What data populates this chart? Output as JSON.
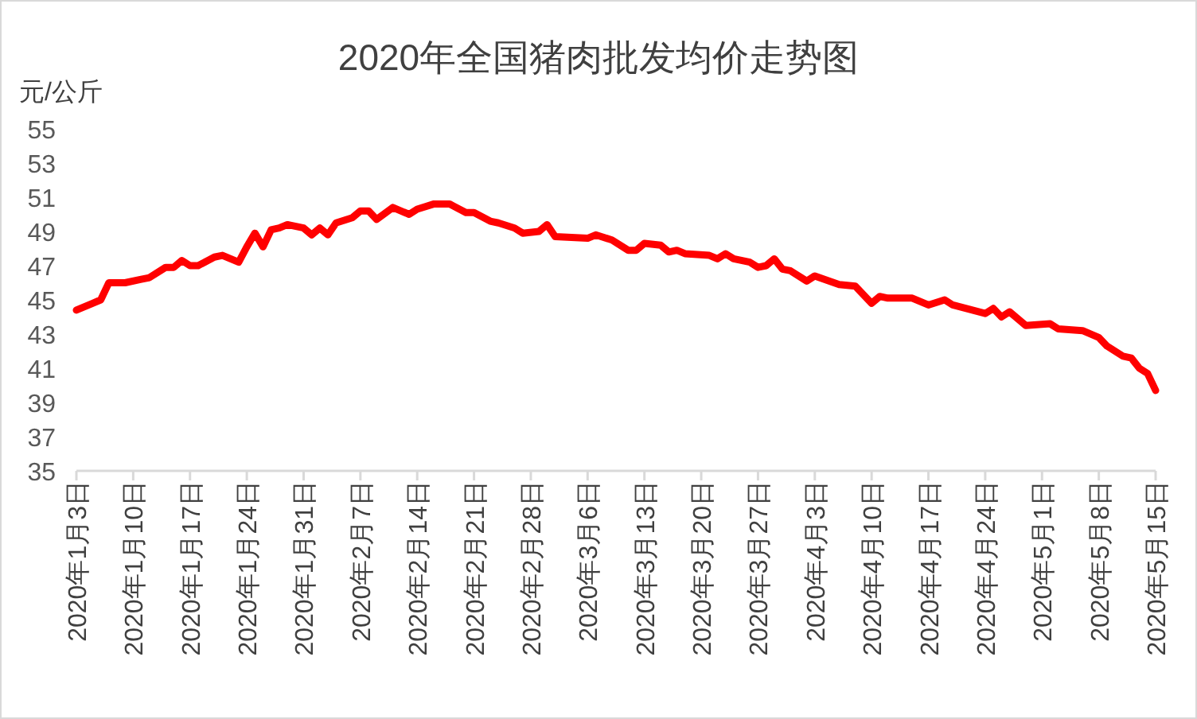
{
  "chart_data": {
    "type": "line",
    "title": "2020年全国猪肉批发均价走势图",
    "ylabel": "元/公斤",
    "x": [
      "2020-01-03",
      "2020-01-05",
      "2020-01-06",
      "2020-01-07",
      "2020-01-09",
      "2020-01-11",
      "2020-01-12",
      "2020-01-14",
      "2020-01-15",
      "2020-01-16",
      "2020-01-17",
      "2020-01-18",
      "2020-01-20",
      "2020-01-21",
      "2020-01-22",
      "2020-01-23",
      "2020-01-24",
      "2020-01-25",
      "2020-01-26",
      "2020-01-27",
      "2020-01-28",
      "2020-01-29",
      "2020-01-31",
      "2020-02-01",
      "2020-02-02",
      "2020-02-03",
      "2020-02-04",
      "2020-02-06",
      "2020-02-07",
      "2020-02-08",
      "2020-02-09",
      "2020-02-11",
      "2020-02-13",
      "2020-02-14",
      "2020-02-16",
      "2020-02-18",
      "2020-02-20",
      "2020-02-21",
      "2020-02-23",
      "2020-02-24",
      "2020-02-26",
      "2020-02-27",
      "2020-02-29",
      "2020-03-01",
      "2020-03-02",
      "2020-03-06",
      "2020-03-07",
      "2020-03-09",
      "2020-03-11",
      "2020-03-12",
      "2020-03-13",
      "2020-03-15",
      "2020-03-16",
      "2020-03-17",
      "2020-03-18",
      "2020-03-21",
      "2020-03-22",
      "2020-03-23",
      "2020-03-24",
      "2020-03-26",
      "2020-03-27",
      "2020-03-28",
      "2020-03-29",
      "2020-03-30",
      "2020-03-31",
      "2020-04-02",
      "2020-04-03",
      "2020-04-06",
      "2020-04-08",
      "2020-04-10",
      "2020-04-11",
      "2020-04-12",
      "2020-04-15",
      "2020-04-17",
      "2020-04-19",
      "2020-04-20",
      "2020-04-24",
      "2020-04-25",
      "2020-04-26",
      "2020-04-27",
      "2020-04-29",
      "2020-05-02",
      "2020-05-03",
      "2020-05-06",
      "2020-05-08",
      "2020-05-09",
      "2020-05-11",
      "2020-05-12",
      "2020-05-13",
      "2020-05-14",
      "2020-05-15"
    ],
    "series": [
      {
        "color": "#ff0000",
        "values": [
          44.4,
          44.8,
          45.0,
          46.0,
          46.0,
          46.2,
          46.3,
          46.9,
          46.9,
          47.3,
          47.0,
          47.0,
          47.5,
          47.6,
          47.4,
          47.2,
          48.1,
          48.9,
          48.1,
          49.1,
          49.2,
          49.4,
          49.2,
          48.8,
          49.2,
          48.8,
          49.5,
          49.8,
          50.2,
          50.2,
          49.7,
          50.4,
          50.0,
          50.3,
          50.6,
          50.6,
          50.1,
          50.1,
          49.6,
          49.5,
          49.2,
          48.9,
          49.0,
          49.4,
          48.7,
          48.6,
          48.8,
          48.5,
          47.9,
          47.9,
          48.3,
          48.2,
          47.8,
          47.9,
          47.7,
          47.6,
          47.4,
          47.7,
          47.4,
          47.2,
          46.9,
          47.0,
          47.4,
          46.8,
          46.7,
          46.1,
          46.4,
          45.9,
          45.8,
          44.8,
          45.2,
          45.1,
          45.1,
          44.7,
          45.0,
          44.7,
          44.2,
          44.5,
          44.0,
          44.3,
          43.5,
          43.6,
          43.3,
          43.2,
          42.8,
          42.3,
          41.7,
          41.6,
          41.0,
          40.7,
          39.7
        ]
      }
    ],
    "xlim": [
      "2020-01-03",
      "2020-05-15"
    ],
    "xticks": [
      {
        "value": "2020-01-03",
        "label": "2020年1月3日"
      },
      {
        "value": "2020-01-10",
        "label": "2020年1月10日"
      },
      {
        "value": "2020-01-17",
        "label": "2020年1月17日"
      },
      {
        "value": "2020-01-24",
        "label": "2020年1月24日"
      },
      {
        "value": "2020-01-31",
        "label": "2020年1月31日"
      },
      {
        "value": "2020-02-07",
        "label": "2020年2月7日"
      },
      {
        "value": "2020-02-14",
        "label": "2020年2月14日"
      },
      {
        "value": "2020-02-21",
        "label": "2020年2月21日"
      },
      {
        "value": "2020-02-28",
        "label": "2020年2月28日"
      },
      {
        "value": "2020-03-06",
        "label": "2020年3月6日"
      },
      {
        "value": "2020-03-13",
        "label": "2020年3月13日"
      },
      {
        "value": "2020-03-20",
        "label": "2020年3月20日"
      },
      {
        "value": "2020-03-27",
        "label": "2020年3月27日"
      },
      {
        "value": "2020-04-03",
        "label": "2020年4月3日"
      },
      {
        "value": "2020-04-10",
        "label": "2020年4月10日"
      },
      {
        "value": "2020-04-17",
        "label": "2020年4月17日"
      },
      {
        "value": "2020-04-24",
        "label": "2020年4月24日"
      },
      {
        "value": "2020-05-01",
        "label": "2020年5月1日"
      },
      {
        "value": "2020-05-08",
        "label": "2020年5月8日"
      },
      {
        "value": "2020-05-15",
        "label": "2020年5月15日"
      }
    ],
    "ylim": [
      35,
      55
    ],
    "yticks": [
      35,
      37,
      39,
      41,
      43,
      45,
      47,
      49,
      51,
      53,
      55
    ],
    "grid": false,
    "marker": "none",
    "line_style": "solid"
  }
}
